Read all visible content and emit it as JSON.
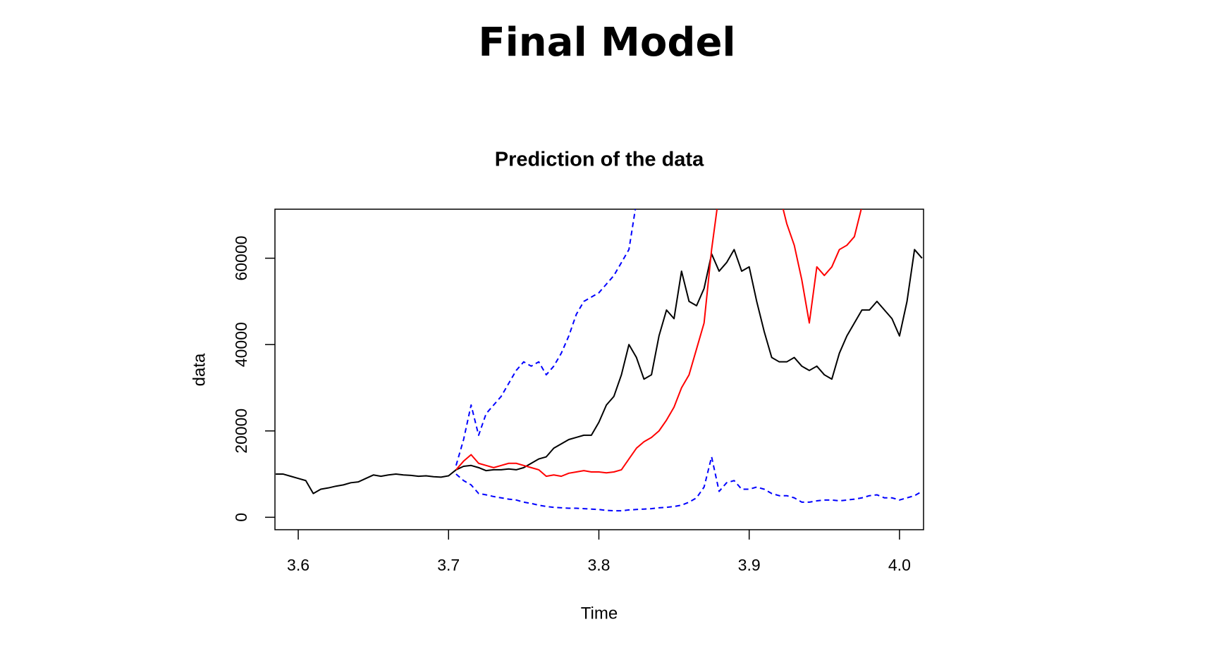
{
  "slide_title": "Final Model",
  "chart_data": {
    "type": "line",
    "title": "Prediction of the data",
    "xlabel": "Time",
    "ylabel": "data",
    "xlim": [
      3.5845,
      4.016
    ],
    "ylim": [
      -2880,
      71350
    ],
    "xticks": [
      3.6,
      3.7,
      3.8,
      3.9,
      {
        "value": 4,
        "label": "4.0"
      }
    ],
    "yticks": [
      0,
      20000,
      40000,
      60000
    ],
    "x": [
      3.585,
      3.59,
      3.595,
      3.6,
      3.605,
      3.61,
      3.615,
      3.62,
      3.625,
      3.63,
      3.635,
      3.64,
      3.645,
      3.65,
      3.655,
      3.66,
      3.665,
      3.67,
      3.675,
      3.68,
      3.685,
      3.69,
      3.695,
      3.7,
      3.705,
      3.71,
      3.715,
      3.72,
      3.725,
      3.73,
      3.735,
      3.74,
      3.745,
      3.75,
      3.755,
      3.76,
      3.765,
      3.77,
      3.775,
      3.78,
      3.785,
      3.79,
      3.795,
      3.8,
      3.805,
      3.81,
      3.815,
      3.82,
      3.825,
      3.83,
      3.835,
      3.84,
      3.845,
      3.85,
      3.855,
      3.86,
      3.865,
      3.87,
      3.875,
      3.88,
      3.885,
      3.89,
      3.895,
      3.9,
      3.905,
      3.91,
      3.915,
      3.92,
      3.925,
      3.93,
      3.935,
      3.94,
      3.945,
      3.95,
      3.955,
      3.96,
      3.965,
      3.97,
      3.975,
      3.98,
      3.985,
      3.99,
      3.995,
      4.0,
      4.005,
      4.01,
      4.015
    ],
    "series": [
      {
        "color": "#000000",
        "linestyle": "solid",
        "values": [
          10000,
          10000,
          9500,
          9000,
          8500,
          5500,
          6500,
          6800,
          7200,
          7500,
          8000,
          8200,
          9000,
          9800,
          9500,
          9800,
          10000,
          9800,
          9700,
          9500,
          9600,
          9400,
          9300,
          9600,
          11000,
          11800,
          12000,
          11500,
          10800,
          11000,
          11000,
          11200,
          11000,
          11500,
          12500,
          13500,
          14000,
          16000,
          17000,
          18000,
          18500,
          19000,
          19000,
          22000,
          26000,
          28000,
          33000,
          40000,
          37000,
          32000,
          33000,
          42000,
          48000,
          46000,
          57000,
          50000,
          49000,
          53000,
          61000,
          57000,
          59000,
          62000,
          57000,
          58000,
          50000,
          43000,
          37000,
          36000,
          36000,
          37000,
          35000,
          34000,
          35000,
          33000,
          32000,
          38000,
          42000,
          45000,
          48000,
          48000,
          50000,
          48000,
          46000,
          42000,
          50000,
          62000,
          60000
        ]
      },
      {
        "color": "#ff0000",
        "linestyle": "solid",
        "values": [
          null,
          null,
          null,
          null,
          null,
          null,
          null,
          null,
          null,
          null,
          null,
          null,
          null,
          null,
          null,
          null,
          null,
          null,
          null,
          null,
          null,
          null,
          null,
          null,
          11000,
          13000,
          14500,
          12500,
          12000,
          11500,
          12000,
          12500,
          12500,
          12000,
          11500,
          11000,
          9500,
          9800,
          9500,
          10200,
          10500,
          10800,
          10500,
          10500,
          10300,
          10500,
          11000,
          13500,
          16000,
          17500,
          18500,
          20000,
          22500,
          25500,
          30000,
          33000,
          39000,
          45000,
          62000,
          75000,
          75000,
          75000,
          75000,
          75000,
          75000,
          75000,
          75000,
          75000,
          68000,
          63000,
          55000,
          45000,
          58000,
          56000,
          58000,
          62000,
          63000,
          65000,
          72000,
          75000,
          75000,
          75000,
          75000,
          75000,
          75000,
          75000,
          75000
        ]
      },
      {
        "color": "#0000ff",
        "linestyle": "dashed",
        "values": [
          null,
          null,
          null,
          null,
          null,
          null,
          null,
          null,
          null,
          null,
          null,
          null,
          null,
          null,
          null,
          null,
          null,
          null,
          null,
          null,
          null,
          null,
          null,
          null,
          12000,
          18000,
          26000,
          19000,
          24000,
          26000,
          28000,
          31000,
          34000,
          36000,
          35000,
          36000,
          33000,
          35000,
          38000,
          42000,
          47000,
          50000,
          51000,
          52000,
          54000,
          56000,
          59000,
          62000,
          73000,
          null,
          null,
          null,
          null,
          null,
          null,
          null,
          null,
          null,
          null,
          null,
          null,
          null,
          null,
          null,
          null,
          null,
          null,
          null,
          null,
          null,
          null,
          null,
          null,
          null,
          null,
          null,
          null,
          null,
          null,
          null,
          null,
          null,
          null,
          null,
          null,
          null,
          null
        ]
      },
      {
        "color": "#0000ff",
        "linestyle": "dashed",
        "values": [
          null,
          null,
          null,
          null,
          null,
          null,
          null,
          null,
          null,
          null,
          null,
          null,
          null,
          null,
          null,
          null,
          null,
          null,
          null,
          null,
          null,
          null,
          null,
          null,
          10000,
          8500,
          7500,
          5500,
          5200,
          4800,
          4500,
          4200,
          4000,
          3500,
          3200,
          2800,
          2500,
          2300,
          2200,
          2100,
          2100,
          2000,
          1900,
          1800,
          1600,
          1500,
          1500,
          1700,
          1800,
          1900,
          2000,
          2200,
          2300,
          2500,
          2800,
          3500,
          4500,
          7000,
          14000,
          6000,
          8000,
          8500,
          6500,
          6500,
          7000,
          6500,
          5500,
          5000,
          5000,
          4500,
          3500,
          3500,
          3800,
          4000,
          4000,
          3800,
          4000,
          4200,
          4500,
          5000,
          5200,
          4500,
          4500,
          4000,
          4500,
          5000,
          6000
        ]
      }
    ]
  }
}
